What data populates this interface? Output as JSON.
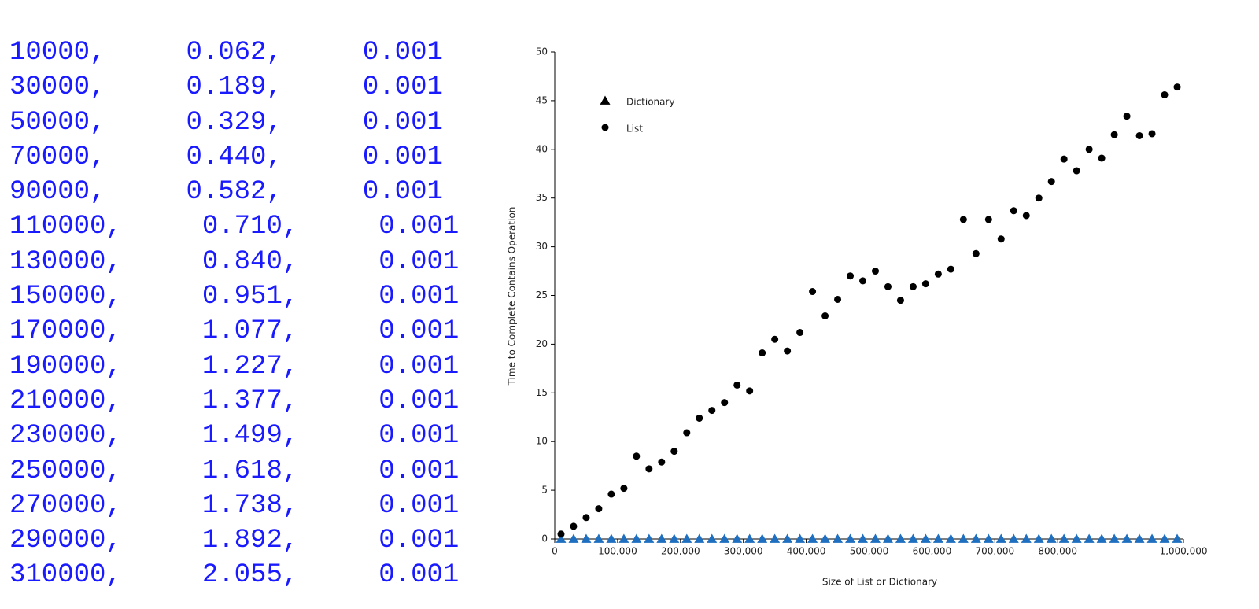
{
  "listing": {
    "rows": [
      [
        "10000,",
        "0.062,",
        "0.001"
      ],
      [
        "30000,",
        "0.189,",
        "0.001"
      ],
      [
        "50000,",
        "0.329,",
        "0.001"
      ],
      [
        "70000,",
        "0.440,",
        "0.001"
      ],
      [
        "90000,",
        "0.582,",
        "0.001"
      ],
      [
        "110000,",
        "0.710,",
        "0.001"
      ],
      [
        "130000,",
        "0.840,",
        "0.001"
      ],
      [
        "150000,",
        "0.951,",
        "0.001"
      ],
      [
        "170000,",
        "1.077,",
        "0.001"
      ],
      [
        "190000,",
        "1.227,",
        "0.001"
      ],
      [
        "210000,",
        "1.377,",
        "0.001"
      ],
      [
        "230000,",
        "1.499,",
        "0.001"
      ],
      [
        "250000,",
        "1.618,",
        "0.001"
      ],
      [
        "270000,",
        "1.738,",
        "0.001"
      ],
      [
        "290000,",
        "1.892,",
        "0.001"
      ],
      [
        "310000,",
        "2.055,",
        "0.001"
      ]
    ]
  },
  "chart_data": {
    "type": "scatter",
    "x_label": "Size of List or Dictionary",
    "y_label": "Time to Complete Contains Operation",
    "x": [
      10000,
      30000,
      50000,
      70000,
      90000,
      110000,
      130000,
      150000,
      170000,
      190000,
      210000,
      230000,
      250000,
      270000,
      290000,
      310000,
      330000,
      350000,
      370000,
      390000,
      410000,
      430000,
      450000,
      470000,
      490000,
      510000,
      530000,
      550000,
      570000,
      590000,
      610000,
      630000,
      650000,
      670000,
      690000,
      710000,
      730000,
      750000,
      770000,
      790000,
      810000,
      830000,
      850000,
      870000,
      890000,
      910000,
      930000,
      950000,
      970000,
      990000
    ],
    "series": [
      {
        "name": "Dictionary",
        "color": "#1f6fc0",
        "marker": "triangle",
        "values": [
          0,
          0,
          0,
          0,
          0,
          0,
          0,
          0,
          0,
          0,
          0,
          0,
          0,
          0,
          0,
          0,
          0,
          0,
          0,
          0,
          0,
          0,
          0,
          0,
          0,
          0,
          0,
          0,
          0,
          0,
          0,
          0,
          0,
          0,
          0,
          0,
          0,
          0,
          0,
          0,
          0,
          0,
          0,
          0,
          0,
          0,
          0,
          0,
          0,
          0
        ]
      },
      {
        "name": "List",
        "color": "#000000",
        "marker": "circle",
        "values": [
          0.5,
          1.3,
          2.2,
          3.1,
          4.6,
          5.2,
          8.5,
          7.2,
          7.9,
          9.0,
          10.9,
          12.4,
          13.2,
          14.0,
          15.8,
          15.2,
          19.1,
          20.5,
          19.3,
          21.2,
          25.4,
          22.9,
          24.6,
          27.0,
          26.5,
          27.5,
          25.9,
          24.5,
          25.9,
          26.2,
          27.2,
          27.7,
          32.8,
          29.3,
          32.8,
          30.8,
          33.7,
          33.2,
          35.0,
          36.7,
          39.0,
          37.8,
          40.0,
          39.1,
          41.5,
          43.4,
          41.4,
          41.6,
          45.6,
          46.4
        ]
      }
    ],
    "xlim": [
      0,
      1000000
    ],
    "xticks": [
      0,
      {
        "value": 100000,
        "label": "100,000"
      },
      {
        "value": 200000,
        "label": "200,000"
      },
      {
        "value": 300000,
        "label": "300,000"
      },
      {
        "value": 400000,
        "label": "400,000"
      },
      {
        "value": 500000,
        "label": "500,000"
      },
      {
        "value": 600000,
        "label": "600,000"
      },
      {
        "value": 700000,
        "label": "700,000"
      },
      {
        "value": 800000,
        "label": "800,000"
      },
      {
        "value": 1000000,
        "label": "1,000,000"
      }
    ],
    "ylim": [
      0,
      50
    ],
    "yticks": [
      0,
      5,
      10,
      15,
      20,
      25,
      30,
      35,
      40,
      45,
      50
    ],
    "grid": false,
    "legend": "top-left"
  }
}
